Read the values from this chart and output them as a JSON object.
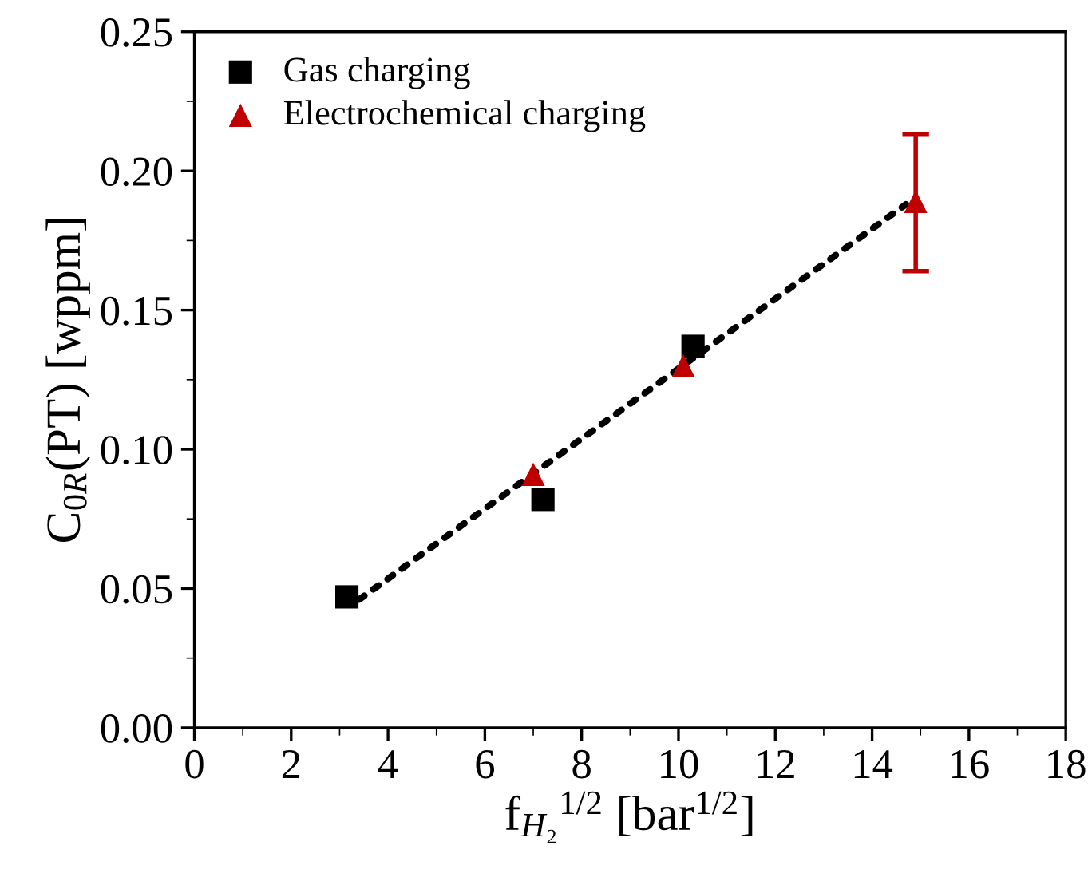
{
  "chart_data": {
    "type": "scatter",
    "xlabel": "f$_{H₂}$$^{1/2}$ [bar$^{1/2}$]",
    "ylabel": "C$_{0R}$(PT) [wppm]",
    "series": [
      {
        "name": "Gas charging",
        "color": "#000000",
        "marker": "square",
        "x": [
          3.15,
          7.2,
          10.3
        ],
        "values": [
          0.047,
          0.082,
          0.137
        ]
      },
      {
        "name": "Electrochemical charging",
        "color": "#c00000",
        "marker": "triangle",
        "x": [
          7.0,
          10.1,
          14.9
        ],
        "values": [
          0.091,
          0.13,
          0.189
        ],
        "errors": [
          null,
          null,
          [
            0.164,
            0.213
          ]
        ]
      },
      {
        "type": "line",
        "color": "#000000",
        "line_style": "dotted",
        "x": [
          3.4,
          14.7
        ],
        "values": [
          0.046,
          0.188
        ]
      }
    ],
    "xlim": [
      0,
      18
    ],
    "xticks": [
      0,
      2,
      4,
      6,
      8,
      10,
      12,
      14,
      16,
      18
    ],
    "ylim": [
      0,
      0.25
    ],
    "yticks": [
      {
        "value": 0,
        "label": "0.00"
      },
      {
        "value": 0.05,
        "label": "0.05"
      },
      {
        "value": 0.1,
        "label": "0.10"
      },
      {
        "value": 0.15,
        "label": "0.15"
      },
      {
        "value": 0.2,
        "label": "0.20"
      },
      {
        "value": 0.25,
        "label": "0.25"
      }
    ],
    "legend": "top left",
    "grid": false
  }
}
